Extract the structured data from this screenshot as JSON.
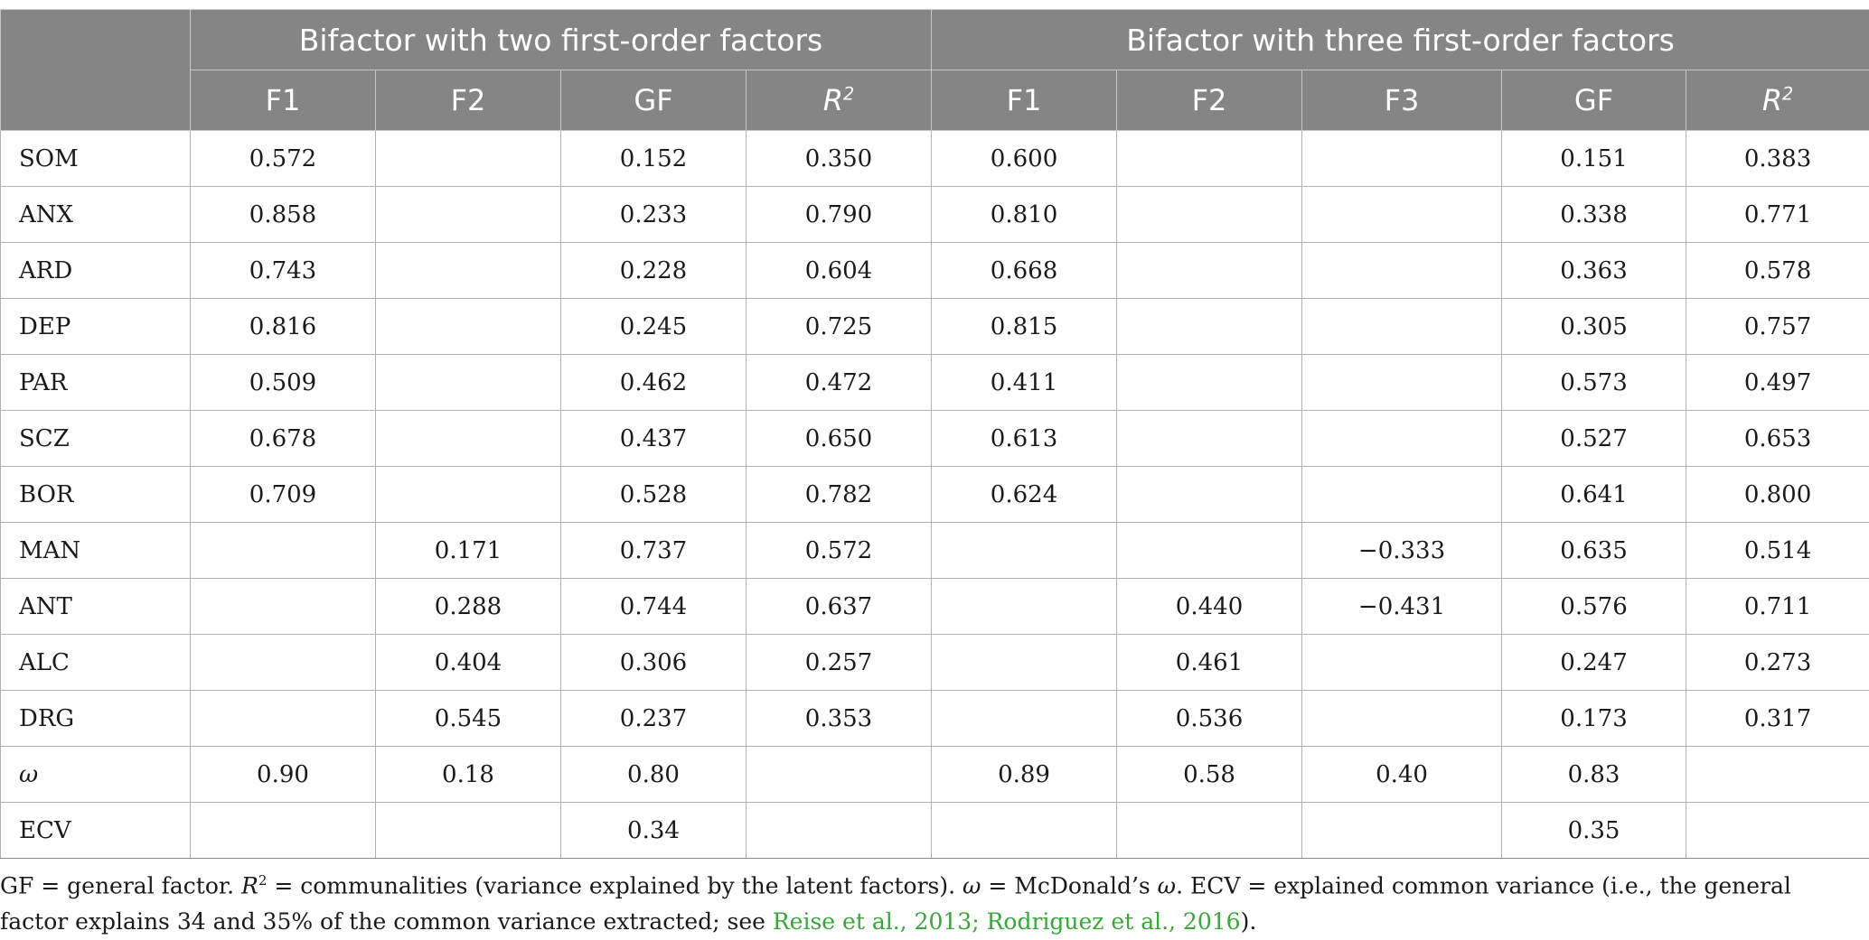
{
  "table": {
    "group_headers": [
      "Bifactor with two first-order factors",
      "Bifactor with three first-order factors"
    ],
    "sub_headers": [
      "F1",
      "F2",
      "GF",
      "R",
      "F1",
      "F2",
      "F3",
      "GF",
      "R"
    ],
    "sub_header_sup": "2",
    "rows": [
      {
        "label": "SOM",
        "cells": [
          "0.572",
          "",
          "0.152",
          "0.350",
          "0.600",
          "",
          "",
          "0.151",
          "0.383"
        ]
      },
      {
        "label": "ANX",
        "cells": [
          "0.858",
          "",
          "0.233",
          "0.790",
          "0.810",
          "",
          "",
          "0.338",
          "0.771"
        ]
      },
      {
        "label": "ARD",
        "cells": [
          "0.743",
          "",
          "0.228",
          "0.604",
          "0.668",
          "",
          "",
          "0.363",
          "0.578"
        ]
      },
      {
        "label": "DEP",
        "cells": [
          "0.816",
          "",
          "0.245",
          "0.725",
          "0.815",
          "",
          "",
          "0.305",
          "0.757"
        ]
      },
      {
        "label": "PAR",
        "cells": [
          "0.509",
          "",
          "0.462",
          "0.472",
          "0.411",
          "",
          "",
          "0.573",
          "0.497"
        ]
      },
      {
        "label": "SCZ",
        "cells": [
          "0.678",
          "",
          "0.437",
          "0.650",
          "0.613",
          "",
          "",
          "0.527",
          "0.653"
        ]
      },
      {
        "label": "BOR",
        "cells": [
          "0.709",
          "",
          "0.528",
          "0.782",
          "0.624",
          "",
          "",
          "0.641",
          "0.800"
        ]
      },
      {
        "label": "MAN",
        "cells": [
          "",
          "0.171",
          "0.737",
          "0.572",
          "",
          "",
          "−0.333",
          "0.635",
          "0.514"
        ]
      },
      {
        "label": "ANT",
        "cells": [
          "",
          "0.288",
          "0.744",
          "0.637",
          "",
          "0.440",
          "−0.431",
          "0.576",
          "0.711"
        ]
      },
      {
        "label": "ALC",
        "cells": [
          "",
          "0.404",
          "0.306",
          "0.257",
          "",
          "0.461",
          "",
          "0.247",
          "0.273"
        ]
      },
      {
        "label": "DRG",
        "cells": [
          "",
          "0.545",
          "0.237",
          "0.353",
          "",
          "0.536",
          "",
          "0.173",
          "0.317"
        ]
      },
      {
        "label": "ω",
        "cells": [
          "0.90",
          "0.18",
          "0.80",
          "",
          "0.89",
          "0.58",
          "0.40",
          "0.83",
          ""
        ]
      },
      {
        "label": "ECV",
        "cells": [
          "",
          "",
          "0.34",
          "",
          "",
          "",
          "",
          "0.35",
          ""
        ]
      }
    ]
  },
  "note": {
    "p1": "GF = general factor. ",
    "r_sym": "R",
    "r_sup": "2",
    "p2": " = communalities (variance explained by the latent factors). ",
    "omega_sym": "ω",
    "p3": " = McDonald’s ",
    "omega_sym2": "ω",
    "p4": ". ECV = explained common variance (i.e., the general factor explains 34 and 35% of the common variance extracted; see ",
    "refs": "Reise et al., 2013; Rodriguez et al., 2016",
    "p5": ")."
  }
}
